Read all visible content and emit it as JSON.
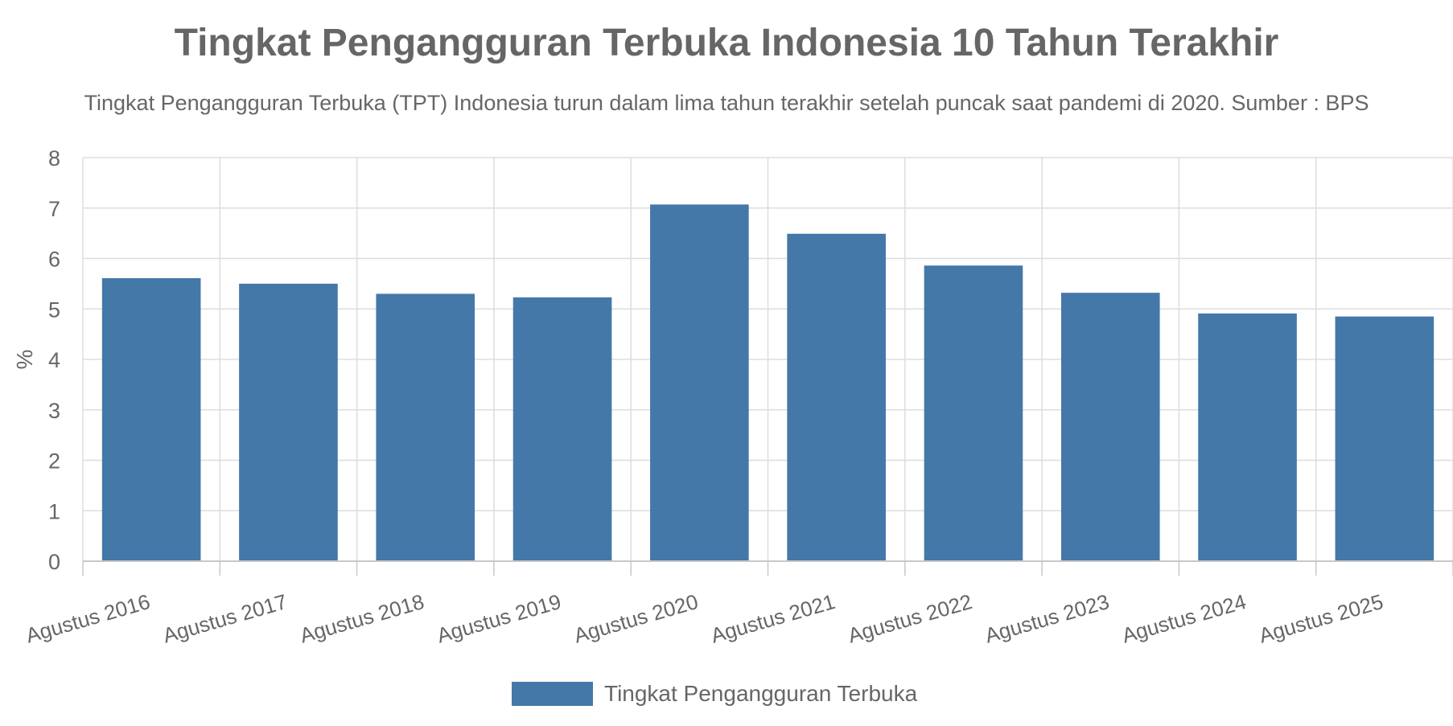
{
  "chart_data": {
    "type": "bar",
    "title": "Tingkat Pengangguran Terbuka Indonesia 10 Tahun Terakhir",
    "subtitle": "Tingkat Pengangguran Terbuka (TPT) Indonesia turun dalam lima tahun terakhir setelah puncak saat pandemi di 2020. Sumber : BPS",
    "xlabel": "",
    "ylabel": "%",
    "categories": [
      "Agustus 2016",
      "Agustus 2017",
      "Agustus 2018",
      "Agustus 2019",
      "Agustus 2020",
      "Agustus 2021",
      "Agustus 2022",
      "Agustus 2023",
      "Agustus 2024",
      "Agustus 2025"
    ],
    "series": [
      {
        "name": "Tingkat Pengangguran Terbuka",
        "values": [
          5.61,
          5.5,
          5.3,
          5.23,
          7.07,
          6.49,
          5.86,
          5.32,
          4.91,
          4.85
        ],
        "color": "#4478a8"
      }
    ],
    "ylim": [
      0,
      8
    ],
    "yticks": [
      0,
      1,
      2,
      3,
      4,
      5,
      6,
      7,
      8
    ],
    "grid": true,
    "legend_position": "bottom-center",
    "colors": {
      "text": "#666666",
      "grid": "#dddddd",
      "axis": "#c8c8c8",
      "bar": "#4478a8"
    }
  }
}
